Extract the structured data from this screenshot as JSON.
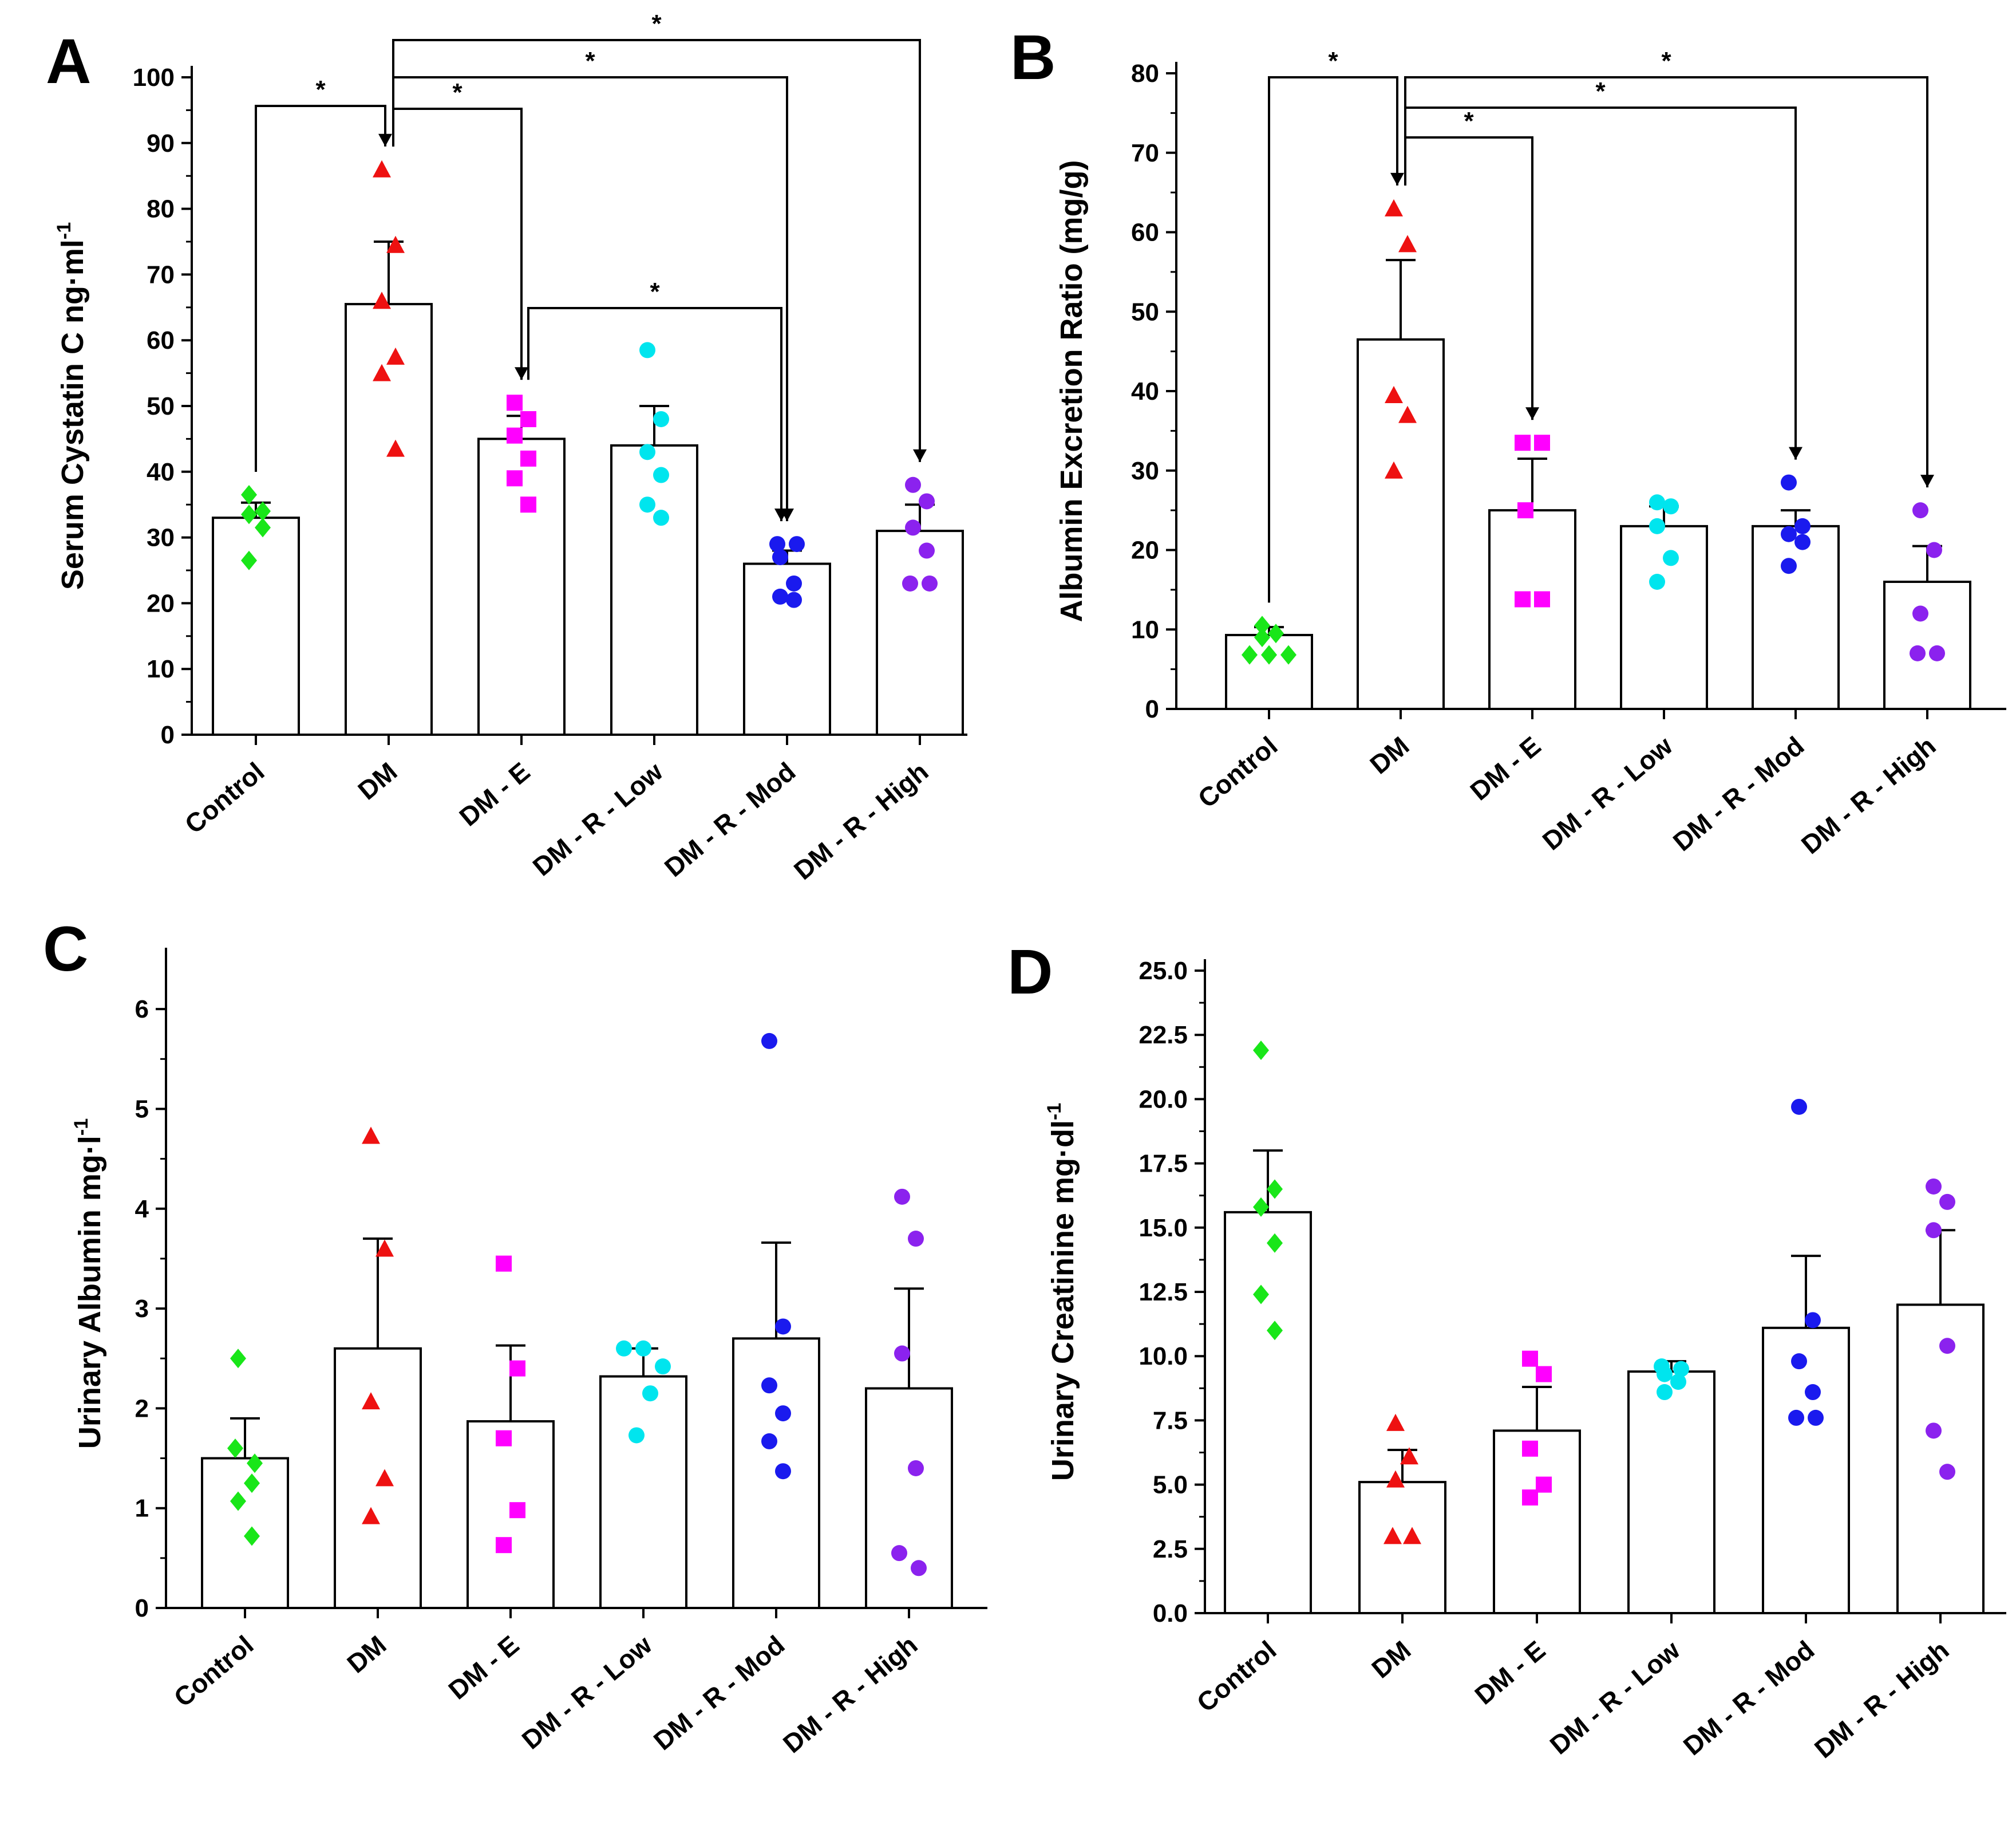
{
  "figure": {
    "colors": {
      "Control": "#19e619",
      "DM": "#ee1111",
      "DM - E": "#ff00ff",
      "DM - R - Low": "#00e5ee",
      "DM - R - Mod": "#1a1aee",
      "DM - R - High": "#8b22ee",
      "bar_fill": "#ffffff",
      "axis": "#000000"
    },
    "markers": {
      "Control": "diamond",
      "DM": "triangle",
      "DM - E": "square",
      "DM - R - Low": "circle",
      "DM - R - Mod": "circle",
      "DM - R - High": "circle"
    }
  },
  "chart_data": [
    {
      "panel": "A",
      "type": "bar",
      "title": "",
      "xlabel": "",
      "ylabel": "Serum Cystatin C ng·ml",
      "ylabel_sup": "-1",
      "ylim": [
        0,
        100
      ],
      "yticks": [
        "0",
        "10",
        "20",
        "30",
        "40",
        "50",
        "60",
        "70",
        "80",
        "90",
        "100"
      ],
      "categories": [
        "Control",
        "DM",
        "DM - E",
        "DM - R - Low",
        "DM - R - Mod",
        "DM - R - High"
      ],
      "means": [
        33,
        65.5,
        45,
        44,
        26,
        31
      ],
      "errors": [
        2.3,
        9.5,
        3.5,
        6,
        2,
        4
      ],
      "points": [
        [
          36.5,
          34,
          33.5,
          31.5,
          26.5
        ],
        [
          86,
          74.5,
          66,
          57.5,
          55,
          43.5
        ],
        [
          50.5,
          48,
          45.5,
          42,
          39,
          35
        ],
        [
          58.5,
          48,
          43,
          39.5,
          35,
          33
        ],
        [
          29,
          29,
          27,
          23,
          21,
          20.5
        ],
        [
          38,
          35.5,
          31.5,
          28,
          23,
          23
        ]
      ],
      "significance": [
        {
          "from": "Control",
          "to": "DM",
          "label": "*"
        },
        {
          "from": "DM",
          "to": "DM - E",
          "label": "*"
        },
        {
          "from": "DM",
          "to": "DM - R - Mod",
          "label": "*"
        },
        {
          "from": "DM",
          "to": "DM - R - High",
          "label": "*"
        },
        {
          "from": "DM - E",
          "to": "DM - R - Mod",
          "label": "*"
        }
      ]
    },
    {
      "panel": "B",
      "type": "bar",
      "title": "",
      "xlabel": "",
      "ylabel": "Albumin Excretion Ratio (mg/g)",
      "ylabel_sup": "",
      "ylim": [
        0,
        80
      ],
      "yticks": [
        "0",
        "10",
        "20",
        "30",
        "40",
        "50",
        "60",
        "70",
        "80"
      ],
      "categories": [
        "Control",
        "DM",
        "DM - E",
        "DM - R - Low",
        "DM - R - Mod",
        "DM - R - High"
      ],
      "means": [
        9.3,
        46.5,
        25,
        23,
        23,
        16
      ],
      "errors": [
        1,
        10,
        6.5,
        2.5,
        2,
        4.5
      ],
      "points": [
        [
          10.5,
          9.5,
          9,
          6.8,
          6.8,
          6.8
        ],
        [
          63,
          58.5,
          39.5,
          37,
          30
        ],
        [
          33.5,
          33.5,
          25,
          13.8,
          13.8
        ],
        [
          26,
          25.5,
          23,
          19,
          16
        ],
        [
          28.5,
          23,
          22,
          21,
          18
        ],
        [
          25,
          20,
          12,
          7,
          7
        ]
      ],
      "significance": [
        {
          "from": "Control",
          "to": "DM",
          "label": "*"
        },
        {
          "from": "DM",
          "to": "DM - E",
          "label": "*"
        },
        {
          "from": "DM",
          "to": "DM - R - Mod",
          "label": "*"
        },
        {
          "from": "DM",
          "to": "DM - R - High",
          "label": "*"
        }
      ]
    },
    {
      "panel": "C",
      "type": "bar",
      "title": "",
      "xlabel": "",
      "ylabel": "Urinary Albumin mg·l",
      "ylabel_sup": "-1",
      "ylim": [
        0,
        6.5
      ],
      "yticks": [
        "0",
        "1",
        "2",
        "3",
        "4",
        "5",
        "6"
      ],
      "categories": [
        "Control",
        "DM",
        "DM - E",
        "DM - R - Low",
        "DM - R - Mod",
        "DM - R - High"
      ],
      "means": [
        1.5,
        2.6,
        1.87,
        2.32,
        2.7,
        2.2
      ],
      "errors": [
        0.4,
        1.1,
        0.76,
        0.28,
        0.96,
        1
      ],
      "points": [
        [
          2.5,
          1.6,
          1.45,
          1.25,
          1.07,
          0.72
        ],
        [
          4.73,
          3.6,
          2.07,
          1.3,
          0.92
        ],
        [
          3.45,
          2.4,
          1.7,
          0.98,
          0.63
        ],
        [
          2.6,
          2.6,
          2.42,
          2.15,
          1.73
        ],
        [
          5.68,
          2.82,
          2.23,
          1.95,
          1.67,
          1.37
        ],
        [
          4.12,
          3.7,
          2.55,
          1.4,
          0.55,
          0.4
        ]
      ],
      "significance": []
    },
    {
      "panel": "D",
      "type": "bar",
      "title": "",
      "xlabel": "",
      "ylabel": "Urinary Creatinine mg·dl",
      "ylabel_sup": "-1",
      "ylim": [
        0,
        25
      ],
      "yticks": [
        "0.0",
        "2.5",
        "5.0",
        "7.5",
        "10.0",
        "12.5",
        "15.0",
        "17.5",
        "20.0",
        "22.5",
        "25.0"
      ],
      "categories": [
        "Control",
        "DM",
        "DM - E",
        "DM - R - Low",
        "DM - R - Mod",
        "DM - R - High"
      ],
      "means": [
        15.6,
        5.1,
        7.1,
        9.4,
        11.1,
        12
      ],
      "errors": [
        2.4,
        1.25,
        1.7,
        0.4,
        2.8,
        2.9
      ],
      "points": [
        [
          21.9,
          16.5,
          15.8,
          14.4,
          12.4,
          11
        ],
        [
          7.4,
          6.1,
          5.2,
          3,
          3
        ],
        [
          9.9,
          9.3,
          6.4,
          5,
          4.5
        ],
        [
          9.6,
          9.5,
          9.3,
          9,
          8.6
        ],
        [
          19.7,
          11.4,
          9.8,
          8.6,
          7.6,
          7.6
        ],
        [
          16.6,
          16,
          14.9,
          10.4,
          7.1,
          5.5
        ]
      ],
      "significance": []
    }
  ]
}
